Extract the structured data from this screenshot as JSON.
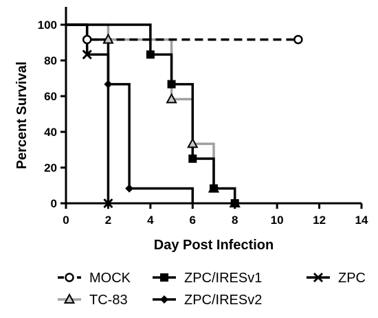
{
  "chart_data": {
    "type": "line",
    "step": true,
    "xlabel": "Day Post Infection",
    "ylabel": "Percent Survival",
    "xlim": [
      0,
      14
    ],
    "ylim": [
      0,
      100
    ],
    "xticks": [
      0,
      2,
      4,
      6,
      8,
      10,
      12,
      14
    ],
    "yticks": [
      0,
      20,
      40,
      60,
      80,
      100
    ],
    "grid": false,
    "legend_position": "bottom",
    "series": [
      {
        "name": "MOCK",
        "color": "#000000",
        "dashed": true,
        "marker": "open-circle",
        "steps": [
          [
            0,
            100
          ],
          [
            1,
            91.7
          ],
          [
            11,
            91.7
          ]
        ],
        "markers": [
          [
            1,
            91.7
          ],
          [
            11,
            91.7
          ]
        ]
      },
      {
        "name": "TC-83",
        "color": "#a0a0a0",
        "dashed": false,
        "marker": "triangle",
        "steps": [
          [
            0,
            100
          ],
          [
            2,
            91.7
          ],
          [
            5,
            58.3
          ],
          [
            6,
            33.3
          ],
          [
            7,
            8.3
          ],
          [
            8,
            0
          ]
        ],
        "markers": [
          [
            2,
            91.7
          ],
          [
            5,
            58.3
          ],
          [
            6,
            33.3
          ],
          [
            7,
            8.3
          ],
          [
            8,
            0
          ]
        ]
      },
      {
        "name": "ZPC/IRESv1",
        "color": "#000000",
        "dashed": false,
        "marker": "square",
        "steps": [
          [
            0,
            100
          ],
          [
            4,
            83.3
          ],
          [
            5,
            66.7
          ],
          [
            6,
            25
          ],
          [
            7,
            8.3
          ],
          [
            8,
            0
          ]
        ],
        "markers": [
          [
            4,
            83.3
          ],
          [
            5,
            66.7
          ],
          [
            6,
            25
          ],
          [
            7,
            8.3
          ],
          [
            8,
            0
          ]
        ]
      },
      {
        "name": "ZPC/IRESv2",
        "color": "#000000",
        "dashed": false,
        "marker": "diamond",
        "steps": [
          [
            0,
            100
          ],
          [
            1,
            91.7
          ],
          [
            2,
            66.7
          ],
          [
            3,
            8.3
          ],
          [
            6,
            0
          ]
        ],
        "markers": [
          [
            2,
            66.7
          ],
          [
            3,
            8.3
          ]
        ]
      },
      {
        "name": "ZPC",
        "color": "#000000",
        "dashed": false,
        "marker": "x",
        "steps": [
          [
            0,
            100
          ],
          [
            1,
            83.3
          ],
          [
            2,
            0
          ]
        ],
        "markers": [
          [
            1,
            83.3
          ],
          [
            2,
            0
          ]
        ]
      }
    ]
  },
  "legend": {
    "rows": [
      [
        "MOCK",
        "ZPC/IRESv1",
        "ZPC"
      ],
      [
        "TC-83",
        "ZPC/IRESv2"
      ]
    ]
  }
}
